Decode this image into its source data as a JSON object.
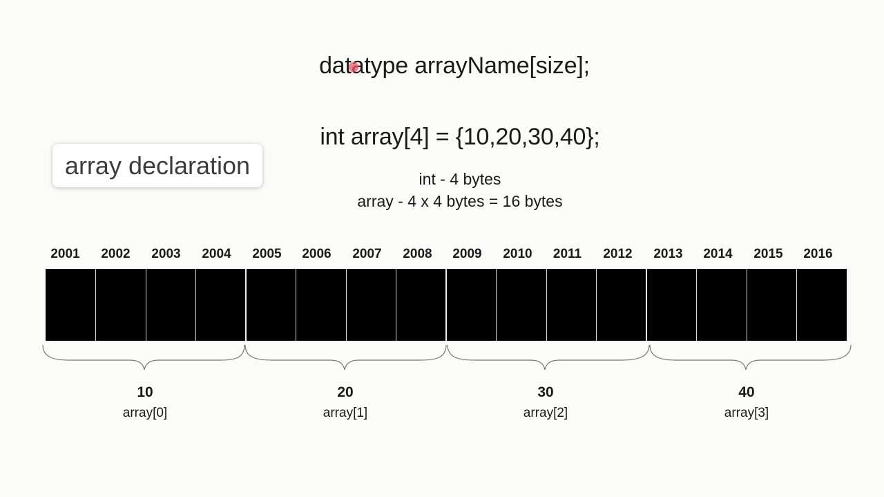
{
  "syntax_line": "datatype arrayName[size];",
  "example_line": "int array[4] = {10,20,30,40};",
  "caption": "array declaration",
  "size_info": {
    "line1": "int - 4 bytes",
    "line2": "array - 4 x 4 bytes = 16 bytes"
  },
  "addresses": [
    "2001",
    "2002",
    "2003",
    "2004",
    "2005",
    "2006",
    "2007",
    "2008",
    "2009",
    "2010",
    "2011",
    "2012",
    "2013",
    "2014",
    "2015",
    "2016"
  ],
  "elements": [
    {
      "value": "10",
      "label": "array[0]"
    },
    {
      "value": "20",
      "label": "array[1]"
    },
    {
      "value": "30",
      "label": "array[2]"
    },
    {
      "value": "40",
      "label": "array[3]"
    }
  ],
  "colors": {
    "memory_block": "#000000",
    "cursor": "#e65a64"
  }
}
